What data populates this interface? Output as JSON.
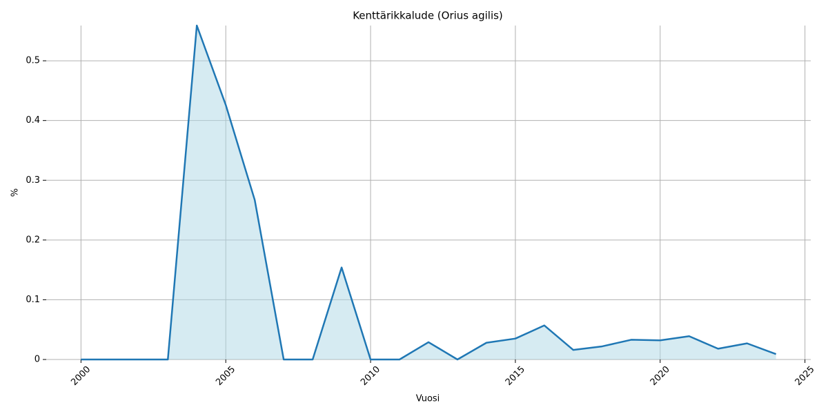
{
  "chart_data": {
    "type": "line",
    "title": "Kenttärikkalude (Orius agilis)",
    "x_label": "Vuosi",
    "y_label": "%",
    "x": [
      2000,
      2001,
      2002,
      2003,
      2004,
      2005,
      2006,
      2007,
      2008,
      2009,
      2010,
      2011,
      2012,
      2013,
      2014,
      2015,
      2016,
      2017,
      2018,
      2019,
      2020,
      2021,
      2022,
      2023,
      2024
    ],
    "series": [
      {
        "color": "#1f77b4",
        "fill": "#add8e6",
        "values": [
          0,
          0,
          0,
          0,
          0.559,
          0.426,
          0.267,
          0,
          0,
          0.154,
          0,
          0,
          0.029,
          0,
          0.028,
          0.035,
          0.057,
          0.016,
          0.022,
          0.033,
          0.032,
          0.039,
          0.018,
          0.027,
          0.009
        ]
      }
    ],
    "xlim": [
      1998.8,
      2025.2
    ],
    "xticks": [
      2000,
      2005,
      2010,
      2015,
      2020,
      2025
    ],
    "ylim": [
      0,
      0.559
    ],
    "yticks": [
      0.0,
      0.1,
      0.2,
      0.3,
      0.4,
      0.5
    ],
    "grid": true
  }
}
